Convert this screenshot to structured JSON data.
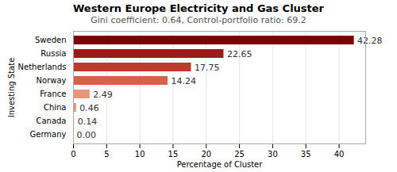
{
  "chart_data": {
    "type": "bar",
    "orientation": "horizontal",
    "title": "Western Europe Electricity and Gas Cluster",
    "subtitle": "Gini coefficient: 0.64, Control-portfolio ratio: 69.2",
    "xlabel": "Percentage of Cluster",
    "ylabel": "Investing State",
    "categories": [
      "Germany",
      "Canada",
      "China",
      "France",
      "Norway",
      "Netherlands",
      "Russia",
      "Sweden"
    ],
    "values": [
      0.0,
      0.14,
      0.46,
      2.49,
      14.24,
      17.75,
      22.65,
      42.28
    ],
    "value_labels": [
      "0.00",
      "0.14",
      "0.46",
      "2.49",
      "14.24",
      "17.75",
      "22.65",
      "42.28"
    ],
    "colors": [
      "#e8957a",
      "#e8957a",
      "#e8957a",
      "#e8957a",
      "#d4614a",
      "#c0392b",
      "#9e1a1a",
      "#7b0000"
    ],
    "xlim": [
      0,
      44
    ],
    "xticks": [
      0,
      5,
      10,
      15,
      20,
      25,
      30,
      35,
      40
    ],
    "grid": true,
    "data_labels": true
  }
}
